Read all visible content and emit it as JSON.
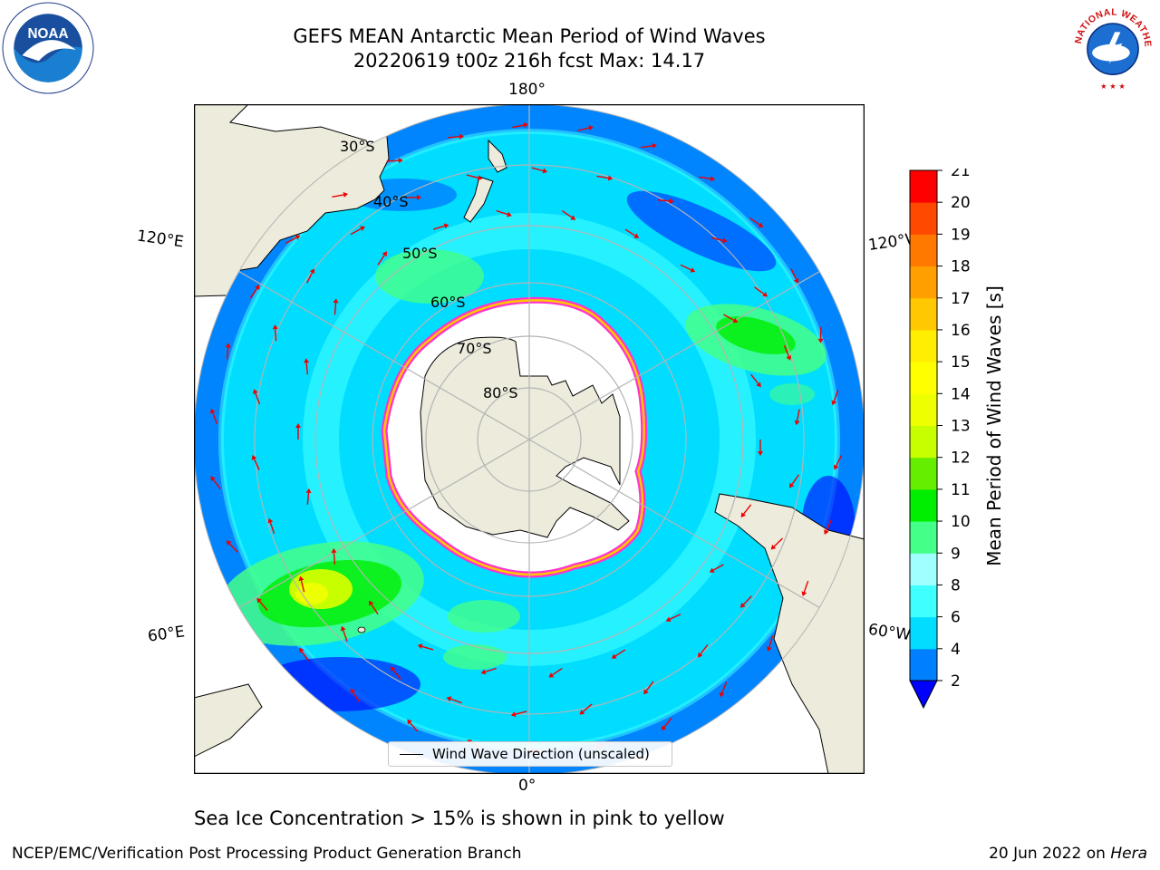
{
  "title": {
    "line1": "GEFS MEAN Antarctic Mean Period of Wind Waves",
    "line2": "20220619 t00z 216h fcst   Max: 14.17"
  },
  "map": {
    "longitude_labels": {
      "top": "180°",
      "bottom": "0°",
      "upper_left": "120°E",
      "upper_right": "120°W",
      "lower_left": "60°E",
      "lower_right": "60°W"
    },
    "latitude_labels": [
      "30°S",
      "40°S",
      "50°S",
      "60°S",
      "70°S",
      "80°S"
    ],
    "legend": "Wind Wave Direction (unscaled)"
  },
  "colorbar": {
    "label": "Mean Period of Wind Waves [s]",
    "ticks": [
      "2",
      "4",
      "6",
      "8",
      "9",
      "10",
      "11",
      "12",
      "13",
      "14",
      "15",
      "16",
      "17",
      "18",
      "19",
      "20",
      "21"
    ],
    "colors": [
      "#0080ff",
      "#00ddff",
      "#40ffff",
      "#a0ffff",
      "#44ff88",
      "#00ee00",
      "#66ee00",
      "#c8ff00",
      "#eeff00",
      "#ffff00",
      "#ffee00",
      "#ffc800",
      "#ffa000",
      "#ff7800",
      "#ff4800",
      "#ff0000"
    ],
    "under_color": "#0000ff"
  },
  "footnote": "Sea Ice Concentration > 15% is shown in pink to yellow",
  "credit_left": "NCEP/EMC/Verification Post Processing Product Generation Branch",
  "credit_date": "20 Jun 2022 on ",
  "credit_host": "Hera",
  "logos": {
    "noaa_text": "NOAA",
    "nws_text": "NATIONAL WEATHER SERVICE"
  }
}
